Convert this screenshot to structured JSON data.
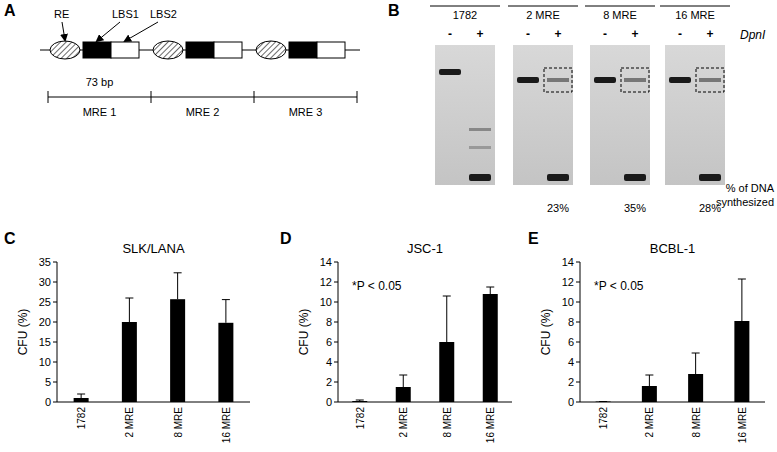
{
  "panel_labels": [
    "A",
    "B",
    "C",
    "D",
    "E"
  ],
  "diagram": {
    "labels": [
      "RE",
      "LBS1",
      "LBS2"
    ],
    "length": "73 bp",
    "units": [
      "MRE 1",
      "MRE 2",
      "MRE 3"
    ]
  },
  "gel": {
    "lanes": [
      "1782",
      "2 MRE",
      "8 MRE",
      "16 MRE"
    ],
    "treatment": [
      "-",
      "+"
    ],
    "enzyme": "DpnI",
    "synthesized_labels": [
      null,
      "23%",
      "35%",
      "28%"
    ],
    "caption_lines": [
      "% of DNA",
      "synthesized"
    ]
  },
  "chart_data": [
    {
      "type": "bar",
      "title": "SLK/LANA",
      "y_label": "CFU (%)",
      "categories": [
        "1782",
        "2 MRE",
        "8 MRE",
        "16 MRE"
      ],
      "values": [
        1.0,
        20.0,
        25.7,
        19.8
      ],
      "errors": [
        1.0,
        6.0,
        6.6,
        5.8
      ],
      "color": "#000000",
      "ylim": [
        0,
        35
      ],
      "yticks": [
        0,
        5,
        10,
        15,
        20,
        25,
        30,
        35
      ]
    },
    {
      "type": "bar",
      "title": "JSC-1",
      "y_label": "CFU (%)",
      "annotation": "*P < 0.05",
      "categories": [
        "1782",
        "2 MRE",
        "8 MRE",
        "16 MRE"
      ],
      "values": [
        0.1,
        1.5,
        6.0,
        10.8
      ],
      "errors": [
        0.1,
        1.2,
        4.6,
        0.7
      ],
      "color": "#000000",
      "ylim": [
        0,
        14
      ],
      "yticks": [
        0,
        2,
        4,
        6,
        8,
        10,
        12,
        14
      ]
    },
    {
      "type": "bar",
      "title": "BCBL-1",
      "y_label": "CFU (%)",
      "annotation": "*P < 0.05",
      "categories": [
        "1782",
        "2 MRE",
        "8 MRE",
        "16 MRE"
      ],
      "values": [
        0.05,
        1.6,
        2.8,
        8.1
      ],
      "errors": [
        0.0,
        1.1,
        2.1,
        4.2
      ],
      "color": "#000000",
      "ylim": [
        0,
        14
      ],
      "yticks": [
        0,
        2,
        4,
        6,
        8,
        10,
        12,
        14
      ]
    }
  ]
}
